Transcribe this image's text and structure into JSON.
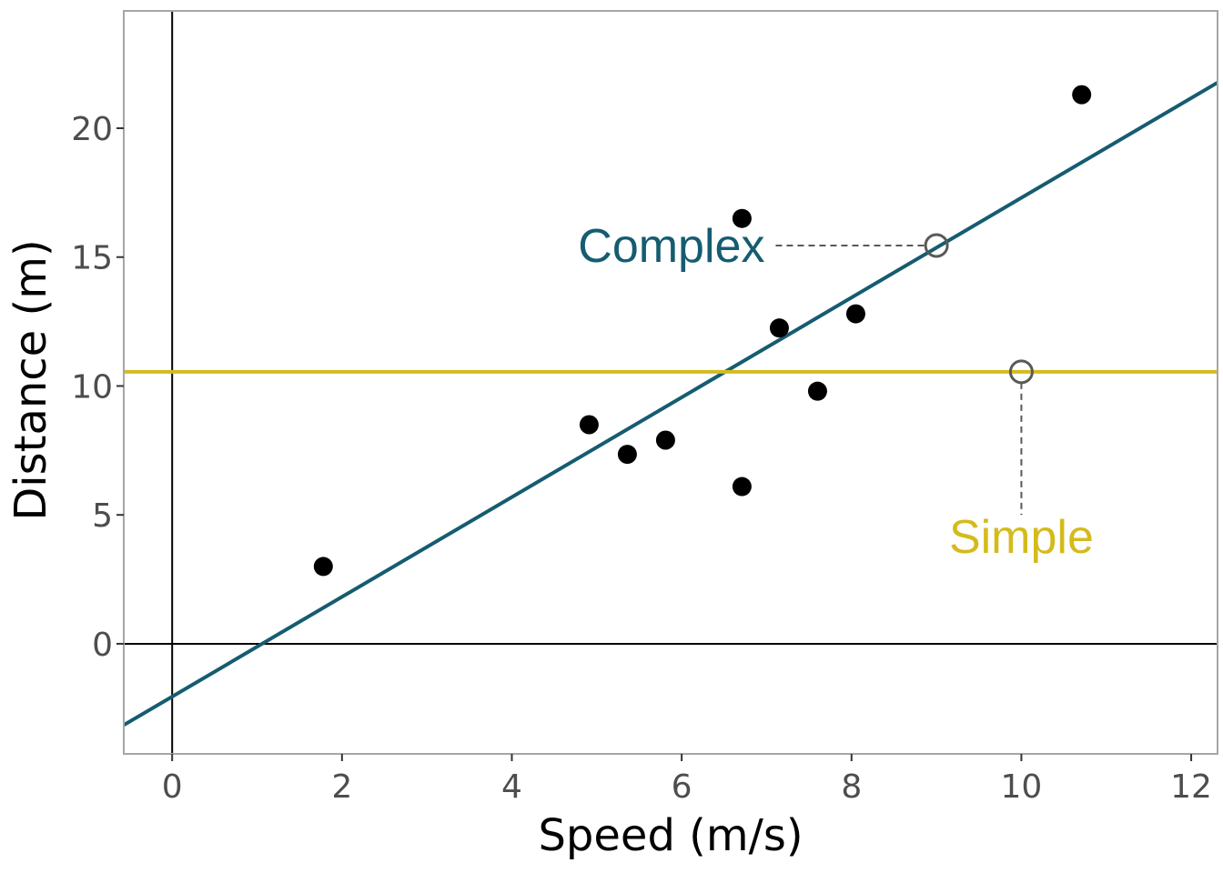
{
  "chart_data": {
    "type": "scatter",
    "title": "",
    "xlabel": "Speed (m/s)",
    "ylabel": "Distance (m)",
    "xlim": [
      -0.57,
      12.31
    ],
    "ylim": [
      -4.27,
      24.55
    ],
    "x_ticks": [
      0,
      2,
      4,
      6,
      8,
      10,
      12
    ],
    "x_tick_labels": [
      "0",
      "2",
      "4",
      "6",
      "8",
      "10",
      "12"
    ],
    "y_ticks": [
      0,
      5,
      10,
      15,
      20
    ],
    "y_tick_labels": [
      "0",
      "5",
      "10",
      "15",
      "20"
    ],
    "grid": false,
    "points": [
      {
        "x": 1.78,
        "y": 3.0
      },
      {
        "x": 4.91,
        "y": 8.5
      },
      {
        "x": 5.36,
        "y": 7.35
      },
      {
        "x": 5.81,
        "y": 7.9
      },
      {
        "x": 6.71,
        "y": 16.5
      },
      {
        "x": 6.71,
        "y": 6.1
      },
      {
        "x": 7.15,
        "y": 12.25
      },
      {
        "x": 7.6,
        "y": 9.8
      },
      {
        "x": 8.05,
        "y": 12.8
      },
      {
        "x": 10.71,
        "y": 21.3
      }
    ],
    "reference_lines": [
      {
        "type": "vline",
        "x": 0,
        "color": "#000000"
      },
      {
        "type": "hline",
        "y": 0,
        "color": "#000000"
      }
    ],
    "models": [
      {
        "name": "Complex",
        "kind": "linear",
        "intercept": -2.05,
        "slope": 1.935,
        "color": "#155c70"
      },
      {
        "name": "Simple",
        "kind": "constant",
        "intercept": 10.55,
        "slope": 0,
        "color": "#d4bb1c"
      }
    ],
    "annotations": [
      {
        "label": "Complex",
        "color": "#155c70",
        "point": {
          "x": 9,
          "y": 15.45
        },
        "label_at": {
          "x": 7.0,
          "y": 15.45
        },
        "anchor": "end"
      },
      {
        "label": "Simple",
        "color": "#d4bb1c",
        "point": {
          "x": 10,
          "y": 10.55
        },
        "label_at": {
          "x": 10,
          "y": 5.0
        },
        "anchor": "middle"
      }
    ]
  }
}
